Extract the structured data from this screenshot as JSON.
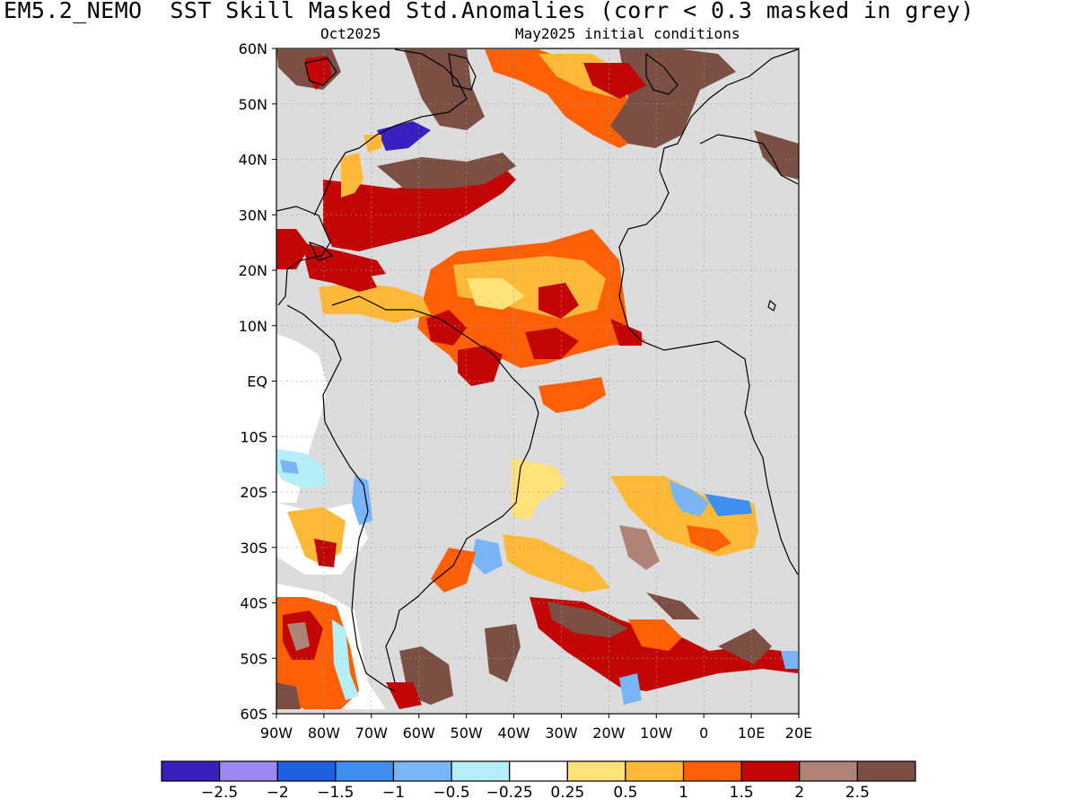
{
  "title": "EM5.2_NEMO  SST Skill Masked Std.Anomalies (corr < 0.3 masked in grey)",
  "subtitle_left": "Oct2025",
  "subtitle_right": "May2025 initial conditions",
  "lat_labels": [
    "60N",
    "50N",
    "40N",
    "30N",
    "20N",
    "10N",
    "EQ",
    "10S",
    "20S",
    "30S",
    "40S",
    "50S",
    "60S"
  ],
  "lon_labels": [
    "90W",
    "80W",
    "70W",
    "60W",
    "50W",
    "40W",
    "30W",
    "20W",
    "10W",
    "0",
    "10E",
    "20E"
  ],
  "colorbar": {
    "colors": [
      "#3a1fbf",
      "#9d88f2",
      "#1f5fe0",
      "#3e8fef",
      "#7ab6f7",
      "#b4eef8",
      "#ffffff",
      "#ffe27a",
      "#ffb938",
      "#ff5f05",
      "#c20505",
      "#b08377",
      "#7b4f43"
    ],
    "labels": [
      "-2.5",
      "-2",
      "-1.5",
      "-1",
      "-0.5",
      "-0.25",
      "0.25",
      "0.5",
      "1",
      "1.5",
      "2",
      "2.5"
    ]
  },
  "mask_color": "#dcdcdc",
  "land_outline_color": "#000000"
}
